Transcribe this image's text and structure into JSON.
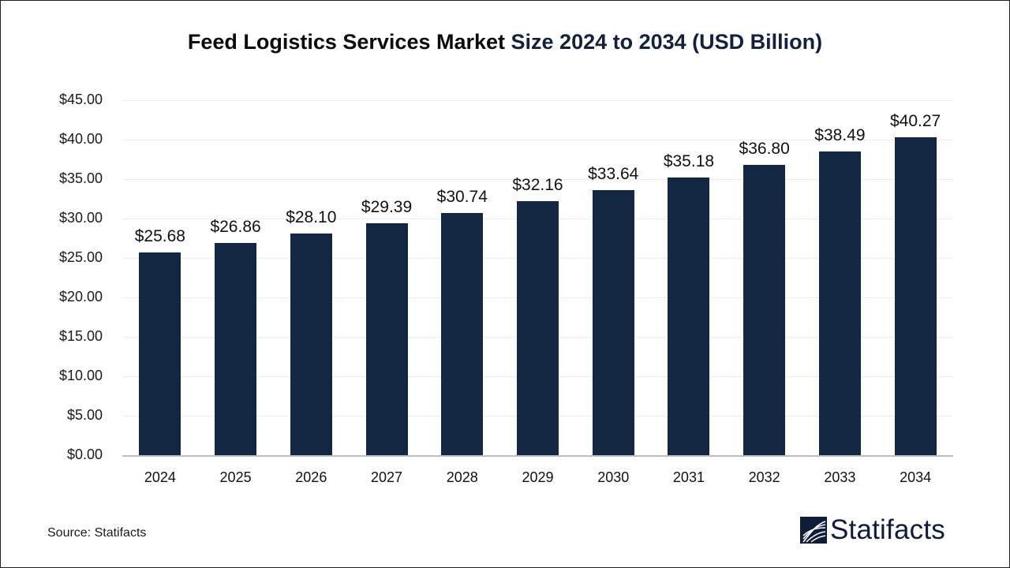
{
  "title": {
    "part1": "Feed Logistics Services Market ",
    "part2": "Size 2024 to 2034 (USD Billion)"
  },
  "source": "Source: Statifacts",
  "logo": {
    "text": "Statifacts",
    "icon": "statifacts-logo-icon"
  },
  "colors": {
    "bar": "#132742",
    "title_highlight": "#14213d",
    "grid": "#ececec",
    "axis": "#bfbfbf"
  },
  "y_ticks": [
    "$0.00",
    "$5.00",
    "$10.00",
    "$15.00",
    "$20.00",
    "$25.00",
    "$30.00",
    "$35.00",
    "$40.00",
    "$45.00"
  ],
  "chart_data": {
    "type": "bar",
    "title": "Feed Logistics Services Market Size 2024 to 2034 (USD Billion)",
    "categories": [
      "2024",
      "2025",
      "2026",
      "2027",
      "2028",
      "2029",
      "2030",
      "2031",
      "2032",
      "2033",
      "2034"
    ],
    "values": [
      25.68,
      26.86,
      28.1,
      29.39,
      30.74,
      32.16,
      33.64,
      35.18,
      36.8,
      38.49,
      40.27
    ],
    "labels": [
      "$25.68",
      "$26.86",
      "$28.10",
      "$29.39",
      "$30.74",
      "$32.16",
      "$33.64",
      "$35.18",
      "$36.80",
      "$38.49",
      "$40.27"
    ],
    "xlabel": "",
    "ylabel": "",
    "ylim": [
      0,
      45
    ],
    "y_tick_step": 5,
    "grid": true,
    "legend": "none",
    "source": "Source: Statifacts"
  }
}
